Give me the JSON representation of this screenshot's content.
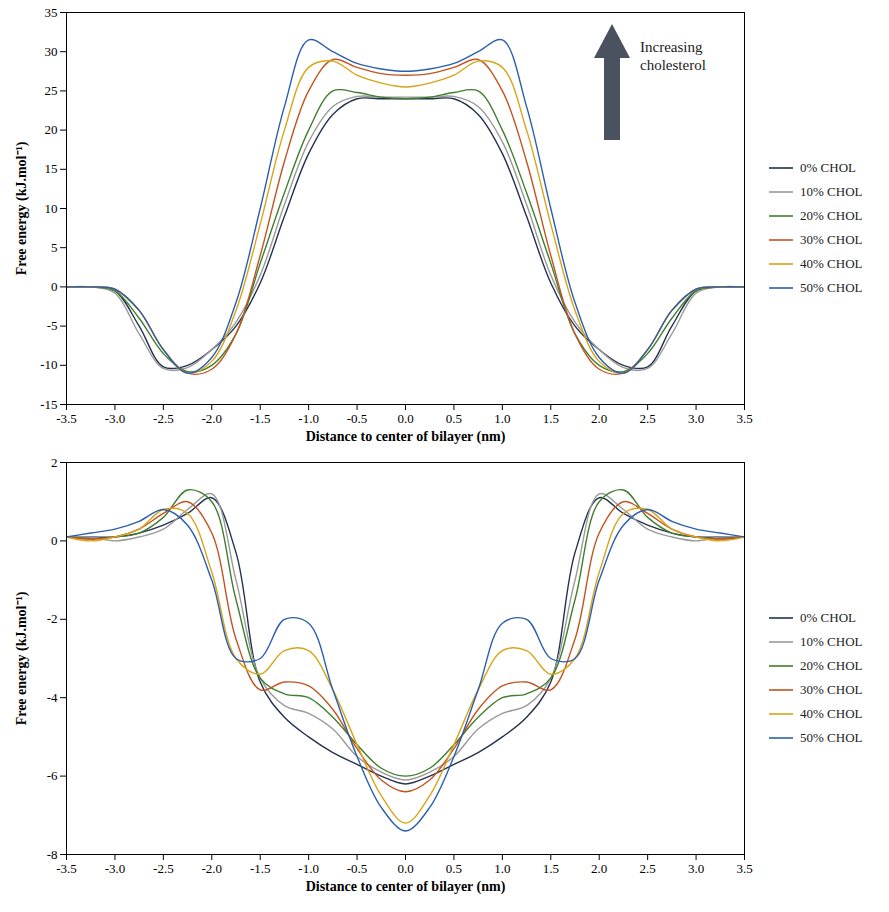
{
  "chart_data": [
    {
      "type": "line",
      "annotation": "Increasing cholesterol",
      "x_label": "Distance to center of bilayer (nm)",
      "y_label": "Free energy (kJ.mol⁻¹)",
      "legend": "right",
      "grid": false,
      "xlim": [
        -3.5,
        3.5
      ],
      "xticks": [
        -3.5,
        {
          "value": -3,
          "label": "-3.0"
        },
        -2.5,
        {
          "value": -2,
          "label": "-2.0"
        },
        -1.5,
        {
          "value": -1,
          "label": "-1.0"
        },
        -0.5,
        {
          "value": 0,
          "label": "0.0"
        },
        0.5,
        {
          "value": 1,
          "label": "1.0"
        },
        1.5,
        {
          "value": 2,
          "label": "2.0"
        },
        2.5,
        {
          "value": 3,
          "label": "3.0"
        },
        3.5
      ],
      "ylim": [
        -15,
        35
      ],
      "yticks": [
        -15,
        -10,
        -5,
        0,
        5,
        10,
        15,
        20,
        25,
        30,
        35
      ],
      "x": [
        -3.5,
        -3.25,
        -3,
        -2.75,
        -2.5,
        -2.25,
        -2,
        -1.75,
        -1.5,
        -1.25,
        -1,
        -0.75,
        -0.5,
        -0.25,
        0,
        0.25,
        0.5,
        0.75,
        1,
        1.25,
        1.5,
        1.75,
        2,
        2.25,
        2.5,
        2.75,
        3,
        3.25,
        3.5
      ],
      "series": [
        {
          "name": "0% CHOL",
          "color": "#24324f",
          "values": [
            0,
            0,
            -0.5,
            -5,
            -10.2,
            -10,
            -8,
            -5,
            0.5,
            9,
            17,
            22,
            24,
            24,
            24,
            24,
            24,
            22,
            17,
            9,
            0.5,
            -5,
            -8,
            -10,
            -10.2,
            -5,
            -0.5,
            0,
            0
          ]
        },
        {
          "name": "10% CHOL",
          "color": "#9a9a9a",
          "values": [
            0,
            0,
            -0.8,
            -6,
            -10.4,
            -10.3,
            -8,
            -4.5,
            1.5,
            10.5,
            18.5,
            23,
            24.3,
            24.2,
            24.2,
            24.2,
            24.3,
            23,
            18.5,
            10.5,
            1.5,
            -4.5,
            -8,
            -10.3,
            -10.4,
            -6,
            -0.8,
            0,
            0
          ]
        },
        {
          "name": "20% CHOL",
          "color": "#3f7f2e",
          "values": [
            0,
            0,
            -0.5,
            -4,
            -8.5,
            -10.8,
            -10,
            -6,
            3,
            12,
            20,
            25,
            24.8,
            24.2,
            24,
            24.2,
            24.8,
            25,
            20,
            12,
            3,
            -6,
            -10,
            -10.8,
            -8.5,
            -4,
            -0.5,
            0,
            0
          ]
        },
        {
          "name": "30% CHOL",
          "color": "#c4531f",
          "values": [
            0,
            0,
            -0.3,
            -3,
            -8,
            -11,
            -10.5,
            -6,
            4,
            16,
            25,
            29,
            28,
            27.2,
            27,
            27.2,
            28,
            29,
            25,
            16,
            4,
            -6,
            -10.5,
            -11,
            -8,
            -3,
            -0.3,
            0,
            0
          ]
        },
        {
          "name": "40% CHOL",
          "color": "#d9a31a",
          "values": [
            0,
            0,
            -0.3,
            -3,
            -8,
            -11,
            -9.5,
            -3,
            8,
            20,
            28,
            28.8,
            27,
            26,
            25.5,
            26,
            27,
            28.8,
            28,
            20,
            8,
            -3,
            -9.5,
            -11,
            -8,
            -3,
            -0.3,
            0,
            0
          ]
        },
        {
          "name": "50% CHOL",
          "color": "#2b5fae",
          "values": [
            0,
            0,
            -0.3,
            -3,
            -8,
            -11,
            -9,
            -2,
            10,
            23,
            31.5,
            30,
            28.5,
            27.8,
            27.5,
            27.8,
            28.5,
            30,
            31.5,
            23,
            10,
            -2,
            -9,
            -11,
            -8,
            -3,
            -0.3,
            0,
            0
          ]
        }
      ]
    },
    {
      "type": "line",
      "x_label": "Distance to center of bilayer (nm)",
      "y_label": "Free energy (kJ.mol⁻¹)",
      "legend": "right",
      "grid": false,
      "xlim": [
        -3.5,
        3.5
      ],
      "xticks": [
        -3.5,
        {
          "value": -3,
          "label": "-3.0"
        },
        -2.5,
        {
          "value": -2,
          "label": "-2.0"
        },
        -1.5,
        {
          "value": -1,
          "label": "-1.0"
        },
        -0.5,
        {
          "value": 0,
          "label": "0.0"
        },
        0.5,
        {
          "value": 1,
          "label": "1.0"
        },
        1.5,
        {
          "value": 2,
          "label": "2.0"
        },
        2.5,
        {
          "value": 3,
          "label": "3.0"
        },
        3.5
      ],
      "ylim": [
        -8,
        2
      ],
      "yticks": [
        -8,
        -6,
        -4,
        -2,
        0,
        2
      ],
      "x": [
        -3.5,
        -3.25,
        -3,
        -2.75,
        -2.5,
        -2.25,
        -2,
        -1.75,
        -1.5,
        -1.25,
        -1,
        -0.75,
        -0.5,
        -0.25,
        0,
        0.25,
        0.5,
        0.75,
        1,
        1.25,
        1.5,
        1.75,
        2,
        2.25,
        2.5,
        2.75,
        3,
        3.25,
        3.5
      ],
      "series": [
        {
          "name": "0% CHOL",
          "color": "#24324f",
          "values": [
            0.1,
            0.1,
            0.1,
            0.2,
            0.4,
            0.7,
            1.1,
            -0.3,
            -3.6,
            -4.5,
            -5.0,
            -5.4,
            -5.7,
            -6.0,
            -6.2,
            -6.0,
            -5.7,
            -5.4,
            -5.0,
            -4.5,
            -3.6,
            -0.3,
            1.1,
            0.7,
            0.4,
            0.2,
            0.1,
            0.1,
            0.1
          ]
        },
        {
          "name": "10% CHOL",
          "color": "#9a9a9a",
          "values": [
            0.1,
            0.1,
            0,
            0.1,
            0.3,
            0.8,
            1.2,
            -1,
            -3.5,
            -4.2,
            -4.4,
            -4.8,
            -5.5,
            -5.9,
            -6.1,
            -5.9,
            -5.5,
            -4.8,
            -4.4,
            -4.2,
            -3.5,
            -1,
            1.2,
            0.8,
            0.3,
            0.1,
            0,
            0.1,
            0.1
          ]
        },
        {
          "name": "20% CHOL",
          "color": "#3f7f2e",
          "values": [
            0.1,
            0.05,
            0.1,
            0.2,
            0.6,
            1.3,
            1.0,
            -1.5,
            -3.5,
            -3.9,
            -4.0,
            -4.5,
            -5.2,
            -5.8,
            -6.0,
            -5.8,
            -5.2,
            -4.5,
            -4.0,
            -3.9,
            -3.5,
            -1.5,
            1.0,
            1.3,
            0.6,
            0.2,
            0.1,
            0.05,
            0.1
          ]
        },
        {
          "name": "30% CHOL",
          "color": "#c4531f",
          "values": [
            0.1,
            0.05,
            0.1,
            0.3,
            0.7,
            1.0,
            0.2,
            -2.5,
            -3.8,
            -3.6,
            -3.7,
            -4.3,
            -5.3,
            -6.1,
            -6.4,
            -6.1,
            -5.3,
            -4.3,
            -3.7,
            -3.6,
            -3.8,
            -2.5,
            0.2,
            1.0,
            0.7,
            0.3,
            0.1,
            0.05,
            0.1
          ]
        },
        {
          "name": "40% CHOL",
          "color": "#d9a31a",
          "values": [
            0.1,
            0,
            0.1,
            0.3,
            0.8,
            0.7,
            -0.8,
            -3.0,
            -3.4,
            -2.8,
            -2.8,
            -3.8,
            -5.2,
            -6.5,
            -7.2,
            -6.5,
            -5.2,
            -3.8,
            -2.8,
            -2.8,
            -3.4,
            -3.0,
            -0.8,
            0.7,
            0.8,
            0.3,
            0.1,
            0,
            0.1
          ]
        },
        {
          "name": "50% CHOL",
          "color": "#2b5fae",
          "values": [
            0.1,
            0.2,
            0.3,
            0.5,
            0.8,
            0.4,
            -1.0,
            -3.0,
            -3.0,
            -2.0,
            -2.1,
            -3.8,
            -5.5,
            -6.8,
            -7.4,
            -6.8,
            -5.5,
            -3.8,
            -2.1,
            -2.0,
            -3.0,
            -3.0,
            -1.0,
            0.4,
            0.8,
            0.5,
            0.3,
            0.2,
            0.1
          ]
        }
      ]
    }
  ]
}
